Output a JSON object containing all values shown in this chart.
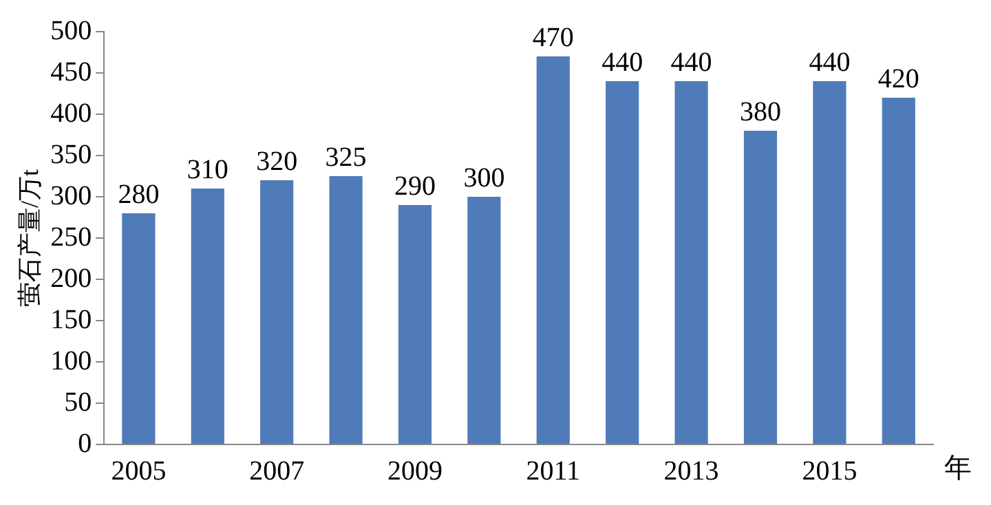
{
  "chart_data": {
    "type": "bar",
    "ylabel": "萤石产量/万t",
    "xlabel": "年",
    "categories": [
      "2005",
      null,
      "2007",
      null,
      "2009",
      null,
      "2011",
      null,
      "2013",
      null,
      "2015",
      null
    ],
    "values": [
      280,
      310,
      320,
      325,
      290,
      300,
      470,
      440,
      440,
      380,
      440,
      420
    ],
    "color": "#4f7bb8",
    "ylim": [
      0,
      500
    ],
    "yticks": [
      0,
      50,
      100,
      150,
      200,
      250,
      300,
      350,
      400,
      450,
      500
    ],
    "data_labels": true,
    "grid": false,
    "legend": false
  }
}
